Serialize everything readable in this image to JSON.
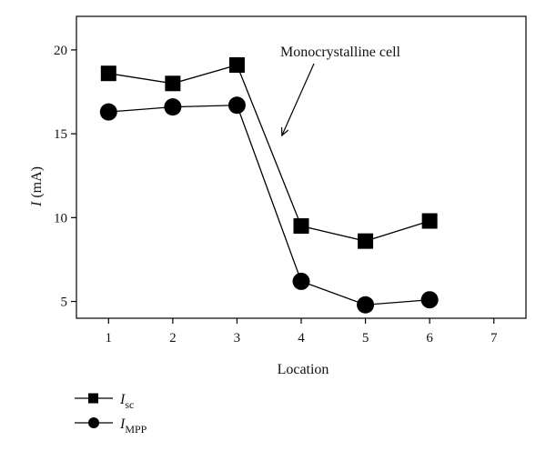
{
  "chart_data": {
    "type": "line",
    "xlabel": "Location",
    "ylabel": {
      "symbol": "I",
      "unit": "(mA)"
    },
    "xlim": [
      0.5,
      7.5
    ],
    "ylim": [
      4,
      22
    ],
    "x_ticks": [
      1,
      2,
      3,
      4,
      5,
      6,
      7
    ],
    "y_ticks": [
      5,
      10,
      15,
      20
    ],
    "grid": false,
    "legend_position": "bottom-left, below plot",
    "x": [
      1,
      2,
      3,
      4,
      5,
      6
    ],
    "series": [
      {
        "name": "Isc",
        "label_main": "I",
        "label_sub": "sc",
        "marker": "square",
        "values": [
          18.6,
          18.0,
          19.1,
          9.5,
          8.6,
          9.8
        ]
      },
      {
        "name": "IMPP",
        "label_main": "I",
        "label_sub": "MPP",
        "marker": "circle",
        "values": [
          16.3,
          16.6,
          16.7,
          6.2,
          4.8,
          5.1
        ]
      }
    ],
    "annotation": {
      "text": "Monocrystalline cell",
      "points_to": {
        "x": 3.7,
        "y": 14.9
      }
    },
    "colors": {
      "marker": "#000000",
      "line": "#000000",
      "axis": "#000000"
    }
  }
}
